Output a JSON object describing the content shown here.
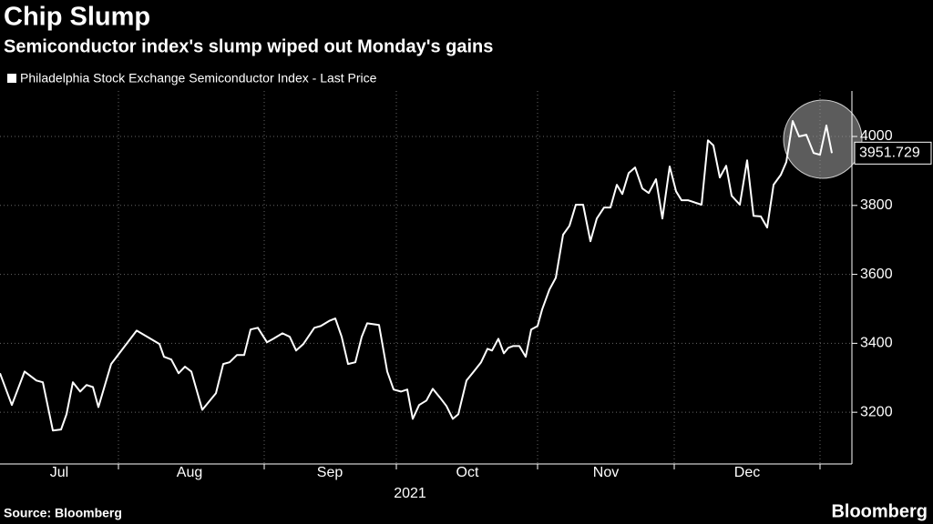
{
  "chart_data": {
    "type": "line",
    "title": "Chip Slump",
    "subtitle": "Semiconductor index's slump wiped out Monday's gains",
    "xlabel": "2021",
    "source": "Source: Bloomberg",
    "brand": "Bloomberg",
    "x": [
      0,
      13,
      27,
      40,
      47,
      58,
      67,
      73,
      80,
      88,
      95,
      102,
      108,
      122,
      150,
      175,
      180,
      188,
      196,
      203,
      210,
      222,
      237,
      245,
      252,
      260,
      268,
      275,
      283,
      293,
      300,
      310,
      318,
      325,
      333,
      345,
      352,
      362,
      368,
      375,
      382,
      390,
      397,
      403,
      416,
      425,
      432,
      440,
      447,
      453,
      460,
      468,
      475,
      483,
      490,
      497,
      503,
      512,
      520,
      528,
      535,
      540,
      547,
      553,
      558,
      563,
      570,
      577,
      583,
      590,
      595,
      603,
      610,
      618,
      625,
      632,
      640,
      648,
      655,
      663,
      670,
      677,
      683,
      690,
      697,
      705,
      712,
      720,
      727,
      735,
      742,
      748,
      755,
      770,
      777,
      783,
      790,
      797,
      803,
      812,
      820,
      827,
      835,
      842,
      849,
      857,
      863,
      870,
      877,
      885,
      893,
      900,
      907,
      913
    ],
    "series": [
      {
        "name": "Philadelphia Stock Exchange Semiconductor Index - Last Price",
        "color": "#ffffff",
        "values": [
          3313,
          3221,
          3318,
          3292,
          3287,
          3147,
          3150,
          3194,
          3287,
          3260,
          3279,
          3273,
          3215,
          3340,
          3437,
          3398,
          3361,
          3353,
          3313,
          3332,
          3318,
          3207,
          3255,
          3340,
          3345,
          3366,
          3366,
          3440,
          3445,
          3403,
          3413,
          3429,
          3419,
          3379,
          3398,
          3445,
          3450,
          3466,
          3472,
          3419,
          3340,
          3345,
          3419,
          3458,
          3453,
          3318,
          3266,
          3260,
          3266,
          3181,
          3221,
          3234,
          3268,
          3242,
          3218,
          3181,
          3194,
          3292,
          3318,
          3345,
          3384,
          3379,
          3413,
          3371,
          3387,
          3392,
          3392,
          3361,
          3440,
          3450,
          3498,
          3556,
          3590,
          3715,
          3741,
          3802,
          3802,
          3696,
          3762,
          3794,
          3794,
          3860,
          3833,
          3894,
          3910,
          3849,
          3836,
          3876,
          3762,
          3913,
          3841,
          3815,
          3815,
          3802,
          3989,
          3974,
          3881,
          3915,
          3828,
          3802,
          3931,
          3770,
          3768,
          3736,
          3860,
          3889,
          3926,
          4045,
          4000,
          4005,
          3952,
          3947,
          4032,
          3951.729
        ]
      }
    ],
    "xlim": [
      0,
      935
    ],
    "xticks": [
      {
        "value": 65,
        "label": "Jul"
      },
      {
        "value": 208,
        "label": "Aug"
      },
      {
        "value": 362,
        "label": "Sep"
      },
      {
        "value": 513,
        "label": "Oct"
      },
      {
        "value": 665,
        "label": "Nov"
      },
      {
        "value": 820,
        "label": "Dec"
      }
    ],
    "xgrid": [
      130,
      290,
      435,
      590,
      740,
      900
    ],
    "ylim": [
      3050,
      4132
    ],
    "yticks": [
      3200,
      3400,
      3600,
      3800,
      4000
    ],
    "grid": true
  }
}
